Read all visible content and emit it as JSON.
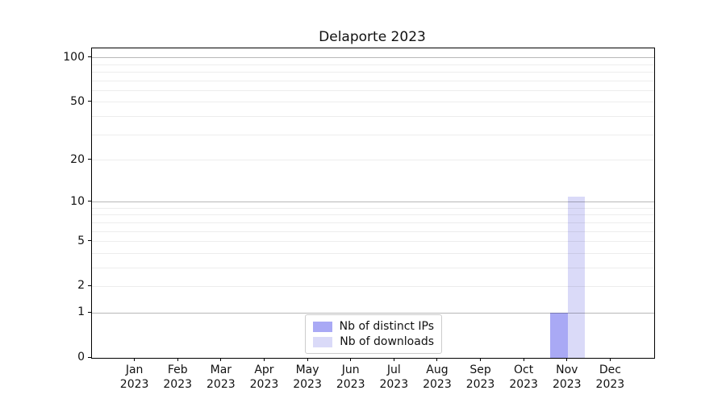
{
  "chart_data": {
    "type": "bar",
    "title": "Delaporte 2023",
    "x_axis": {
      "categories": [
        {
          "month": "Jan",
          "year": "2023"
        },
        {
          "month": "Feb",
          "year": "2023"
        },
        {
          "month": "Mar",
          "year": "2023"
        },
        {
          "month": "Apr",
          "year": "2023"
        },
        {
          "month": "May",
          "year": "2023"
        },
        {
          "month": "Jun",
          "year": "2023"
        },
        {
          "month": "Jul",
          "year": "2023"
        },
        {
          "month": "Aug",
          "year": "2023"
        },
        {
          "month": "Sep",
          "year": "2023"
        },
        {
          "month": "Oct",
          "year": "2023"
        },
        {
          "month": "Nov",
          "year": "2023"
        },
        {
          "month": "Dec",
          "year": "2023"
        }
      ]
    },
    "y_axis": {
      "scale": "log1p",
      "ticks": [
        0,
        1,
        2,
        5,
        10,
        20,
        50,
        100
      ],
      "ylim": [
        0,
        116
      ],
      "grid_major": [
        1,
        10,
        100
      ],
      "grid_minor": [
        2,
        3,
        4,
        5,
        6,
        7,
        8,
        9,
        20,
        30,
        40,
        50,
        60,
        70,
        80,
        90
      ]
    },
    "series": [
      {
        "name": "Nb of distinct IPs",
        "color": "#a9a9f5",
        "values": [
          0,
          0,
          0,
          0,
          0,
          0,
          0,
          0,
          0,
          0,
          1,
          0
        ]
      },
      {
        "name": "Nb of downloads",
        "color": "#dadaf8",
        "values": [
          0,
          0,
          0,
          0,
          0,
          0,
          0,
          0,
          0,
          0,
          11,
          0
        ]
      }
    ],
    "legend": {
      "position": "bottom-center"
    }
  }
}
